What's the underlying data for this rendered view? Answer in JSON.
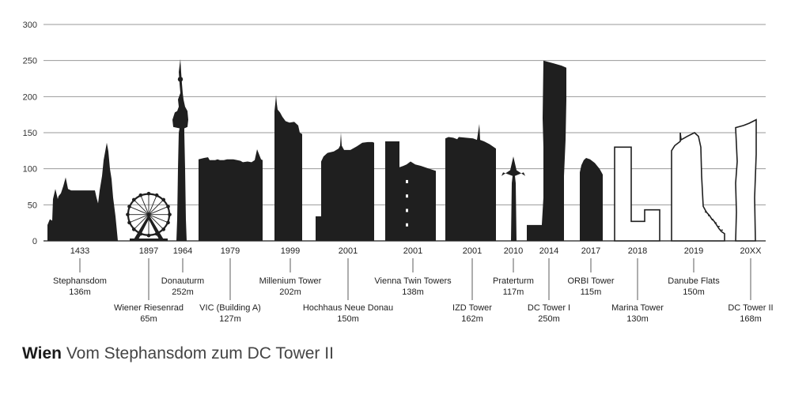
{
  "chart_data": {
    "type": "bar",
    "ylim": [
      0,
      300
    ],
    "yticks": [
      0,
      50,
      100,
      150,
      200,
      250,
      300
    ],
    "grid": true,
    "series": [
      {
        "values": [
          136,
          65,
          252,
          127,
          202,
          150,
          138,
          162,
          117,
          250,
          115,
          130,
          150,
          168
        ]
      }
    ],
    "items": [
      {
        "year": "1433",
        "name": "Stephansdom",
        "height_label": "136m",
        "value": 136,
        "shape": "stephansdom",
        "style": "filled"
      },
      {
        "year": "1897",
        "name": "Wiener Riesenrad",
        "height_label": "65m",
        "value": 65,
        "shape": "riesenrad",
        "style": "filled"
      },
      {
        "year": "1964",
        "name": "Donauturm",
        "height_label": "252m",
        "value": 252,
        "shape": "donauturm",
        "style": "filled"
      },
      {
        "year": "1979",
        "name": "VIC (Building A)",
        "height_label": "127m",
        "value": 127,
        "shape": "vic",
        "style": "filled"
      },
      {
        "year": "1999",
        "name": "Millenium Tower",
        "height_label": "202m",
        "value": 202,
        "shape": "millenium",
        "style": "filled"
      },
      {
        "year": "2001",
        "name": "Hochhaus Neue Donau",
        "height_label": "150m",
        "value": 150,
        "shape": "neuedonau",
        "style": "filled"
      },
      {
        "year": "2001",
        "name": "Vienna Twin Towers",
        "height_label": "138m",
        "value": 138,
        "shape": "twintowers",
        "style": "filled"
      },
      {
        "year": "2001",
        "name": "IZD Tower",
        "height_label": "162m",
        "value": 162,
        "shape": "izd",
        "style": "filled"
      },
      {
        "year": "2010",
        "name": "Praterturm",
        "height_label": "117m",
        "value": 117,
        "shape": "praterturm",
        "style": "filled"
      },
      {
        "year": "2014",
        "name": "DC Tower I",
        "height_label": "250m",
        "value": 250,
        "shape": "dc1",
        "style": "filled"
      },
      {
        "year": "2017",
        "name": "ORBI Tower",
        "height_label": "115m",
        "value": 115,
        "shape": "orbi",
        "style": "filled"
      },
      {
        "year": "2018",
        "name": "Marina Tower",
        "height_label": "130m",
        "value": 130,
        "shape": "marina",
        "style": "outline"
      },
      {
        "year": "2019",
        "name": "Danube Flats",
        "height_label": "150m",
        "value": 150,
        "shape": "danube",
        "style": "outline"
      },
      {
        "year": "20XX",
        "name": "DC Tower II",
        "height_label": "168m",
        "value": 168,
        "shape": "dc2",
        "style": "outline"
      }
    ]
  },
  "caption": {
    "bold": "Wien",
    "text": "Vom Stephansdom zum DC Tower II"
  },
  "colors": {
    "fill": "#1f1f1f",
    "grid": "#9a9a9a"
  }
}
